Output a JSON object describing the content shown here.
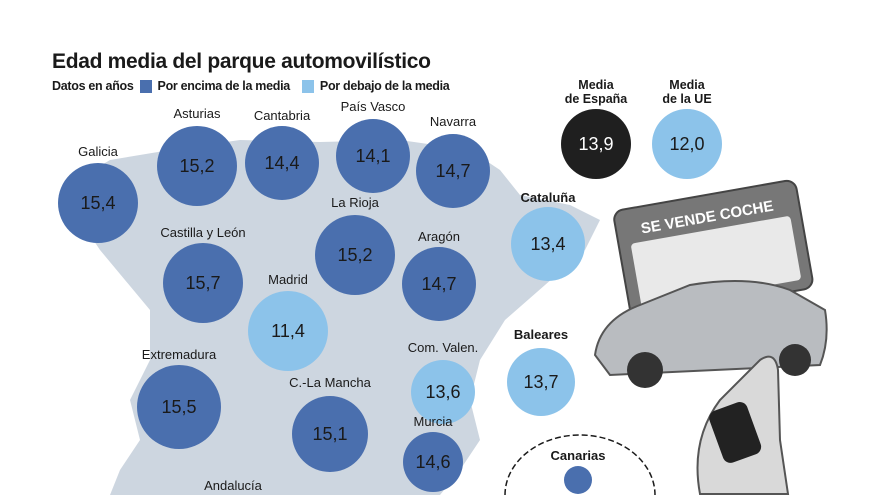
{
  "colors": {
    "above": "#4a6fae",
    "below": "#8cc3ea",
    "map": "#cdd6e0",
    "spain": "#1f1f1f"
  },
  "chart_data": {
    "type": "bubble-map",
    "title": "Edad media del parque automovilístico",
    "subtitle": "Datos en años",
    "legend": [
      {
        "label": "Por encima de la media",
        "color": "#4a6fae"
      },
      {
        "label": "Por debajo de la media",
        "color": "#8cc3ea"
      }
    ],
    "reference": [
      {
        "label1": "Media",
        "label2": "de España",
        "value": "13,9"
      },
      {
        "label1": "Media",
        "label2": "de la UE",
        "value": "12,0"
      }
    ],
    "regions": [
      {
        "name": "Galicia",
        "value": "15,4",
        "category": "above"
      },
      {
        "name": "Asturias",
        "value": "15,2",
        "category": "above"
      },
      {
        "name": "Cantabria",
        "value": "14,4",
        "category": "above"
      },
      {
        "name": "País Vasco",
        "value": "14,1",
        "category": "above"
      },
      {
        "name": "Navarra",
        "value": "14,7",
        "category": "above"
      },
      {
        "name": "Cataluña",
        "value": "13,4",
        "category": "below"
      },
      {
        "name": "La Rioja",
        "value": "15,2",
        "category": "above"
      },
      {
        "name": "Castilla y León",
        "value": "15,7",
        "category": "above"
      },
      {
        "name": "Aragón",
        "value": "14,7",
        "category": "above"
      },
      {
        "name": "Madrid",
        "value": "11,4",
        "category": "below"
      },
      {
        "name": "Extremadura",
        "value": "15,5",
        "category": "above"
      },
      {
        "name": "C.-La Mancha",
        "value": "15,1",
        "category": "above"
      },
      {
        "name": "Com. Valen.",
        "value": "13,6",
        "category": "below"
      },
      {
        "name": "Baleares",
        "value": "13,7",
        "category": "below"
      },
      {
        "name": "Murcia",
        "value": "14,6",
        "category": "above"
      },
      {
        "name": "Andalucía",
        "value": "",
        "category": "above"
      },
      {
        "name": "Canarias",
        "value": "",
        "category": "above"
      }
    ]
  },
  "illustration": {
    "sign_text": "SE VENDE COCHE"
  }
}
